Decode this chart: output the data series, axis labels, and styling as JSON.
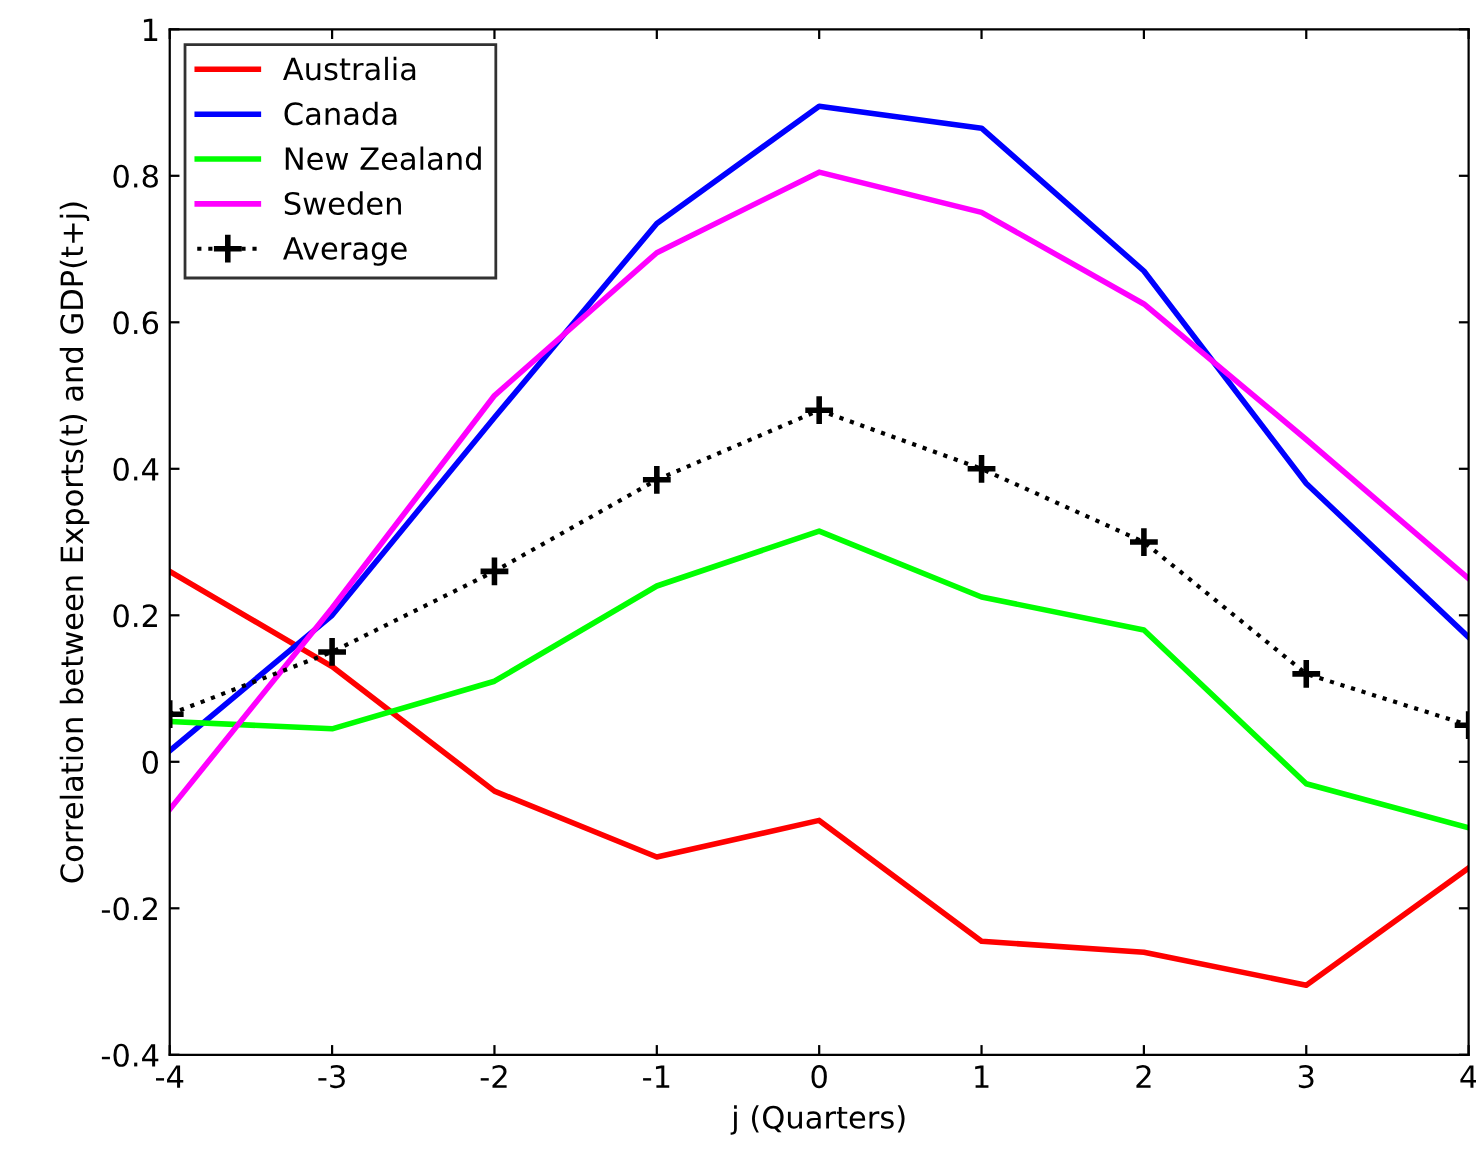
{
  "chart_data": {
    "type": "line",
    "xlabel": "j (Quarters)",
    "ylabel": "Correlation between Exports(t) and GDP(t+j)",
    "x": [
      -4,
      -3,
      -2,
      -1,
      0,
      1,
      2,
      3,
      4
    ],
    "series": [
      {
        "name": "Australia",
        "color": "#ff0000",
        "values": [
          0.26,
          0.13,
          -0.04,
          -0.13,
          -0.08,
          -0.245,
          -0.26,
          -0.305,
          -0.145
        ]
      },
      {
        "name": "Canada",
        "color": "#0000ff",
        "values": [
          0.015,
          0.2,
          0.47,
          0.735,
          0.895,
          0.865,
          0.67,
          0.38,
          0.17
        ]
      },
      {
        "name": "New Zealand",
        "color": "#00ff00",
        "values": [
          0.055,
          0.045,
          0.11,
          0.24,
          0.315,
          0.225,
          0.18,
          -0.03,
          -0.09
        ]
      },
      {
        "name": "Sweden",
        "color": "#ff00ff",
        "values": [
          -0.065,
          0.21,
          0.5,
          0.695,
          0.805,
          0.75,
          0.625,
          0.44,
          0.25
        ]
      },
      {
        "name": "Average",
        "color": "#000000",
        "values": [
          0.065,
          0.15,
          0.26,
          0.385,
          0.48,
          0.4,
          0.3,
          0.12,
          0.05
        ],
        "marker": "cross",
        "line_style": "dotted"
      }
    ],
    "xlim": [
      -4,
      4
    ],
    "xticks": [
      -4,
      -3,
      -2,
      -1,
      0,
      1,
      2,
      3,
      4
    ],
    "ylim": [
      -0.4,
      1
    ],
    "yticks": [
      -0.4,
      -0.2,
      0,
      0.2,
      0.4,
      0.6,
      0.8,
      1
    ],
    "grid": false,
    "legend": "top left"
  }
}
